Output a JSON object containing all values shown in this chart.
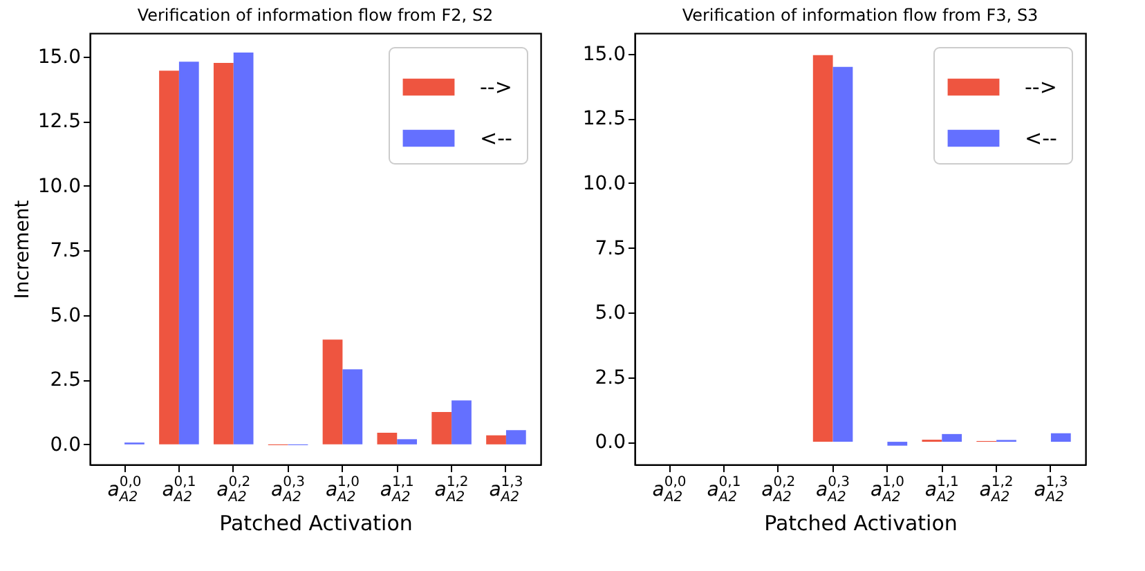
{
  "chart_data": [
    {
      "type": "bar",
      "title": "Verification of information flow from F2, S2",
      "xlabel": "Patched Activation",
      "ylabel": "Increment",
      "categories": [
        "a$^{0,0}$$_{A2}$",
        "a$^{0,1}$$_{A2}$",
        "a$^{0,2}$$_{A2}$",
        "a$^{0,3}$$_{A2}$",
        "a$^{1,0}$$_{A2}$",
        "a$^{1,1}$$_{A2}$",
        "a$^{1,2}$$_{A2}$",
        "a$^{1,3}$$_{A2}$"
      ],
      "series": [
        {
          "name": "-->",
          "color": "#ee5540",
          "values": [
            0,
            14.45,
            14.75,
            -0.03,
            4.05,
            0.45,
            1.25,
            0.35
          ]
        },
        {
          "name": "<--",
          "color": "#6470ff",
          "values": [
            0.07,
            14.8,
            15.15,
            -0.03,
            2.9,
            0.2,
            1.7,
            0.55
          ]
        }
      ],
      "ylim": [
        -0.78,
        15.9
      ],
      "yticks": [
        {
          "value": 0,
          "label": "0.0"
        },
        {
          "value": 2.5,
          "label": "2.5"
        },
        {
          "value": 5,
          "label": "5.0"
        },
        {
          "value": 7.5,
          "label": "7.5"
        },
        {
          "value": 10,
          "label": "10.0"
        },
        {
          "value": 12.5,
          "label": "12.5"
        },
        {
          "value": 15,
          "label": "15.0"
        }
      ],
      "legend": "top right",
      "grid": false
    },
    {
      "type": "bar",
      "title": "Verification of information flow from F3, S3",
      "xlabel": "Patched Activation",
      "categories": [
        "a$^{0,0}$$_{A2}$",
        "a$^{0,1}$$_{A2}$",
        "a$^{0,2}$$_{A2}$",
        "a$^{0,3}$$_{A2}$",
        "a$^{1,0}$$_{A2}$",
        "a$^{1,1}$$_{A2}$",
        "a$^{1,2}$$_{A2}$",
        "a$^{1,3}$$_{A2}$"
      ],
      "series": [
        {
          "name": "-->",
          "color": "#ee5540",
          "values": [
            0,
            0,
            0,
            14.95,
            0,
            0.08,
            0.03,
            0
          ]
        },
        {
          "name": "<--",
          "color": "#6470ff",
          "values": [
            0,
            0,
            0,
            14.5,
            -0.15,
            0.3,
            0.07,
            0.33
          ]
        }
      ],
      "ylim": [
        -0.88,
        15.8
      ],
      "yticks": [
        {
          "value": 0,
          "label": "0.0"
        },
        {
          "value": 2.5,
          "label": "2.5"
        },
        {
          "value": 5,
          "label": "5.0"
        },
        {
          "value": 7.5,
          "label": "7.5"
        },
        {
          "value": 10,
          "label": "10.0"
        },
        {
          "value": 12.5,
          "label": "12.5"
        },
        {
          "value": 15,
          "label": "15.0"
        }
      ],
      "legend": "top right",
      "grid": false
    }
  ]
}
